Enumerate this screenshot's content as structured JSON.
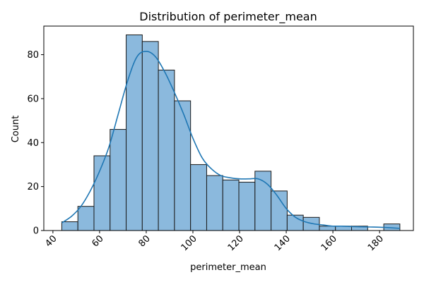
{
  "chart_data": {
    "type": "bar",
    "title": "Distribution of perimeter_mean",
    "xlabel": "perimeter_mean",
    "ylabel": "Count",
    "xlim": [
      36.1,
      194.5
    ],
    "ylim": [
      0,
      93
    ],
    "xticks": [
      40,
      60,
      80,
      100,
      120,
      140,
      160,
      180
    ],
    "yticks": [
      0,
      20,
      40,
      60,
      80
    ],
    "bins": [
      {
        "start": 43.8,
        "end": 50.7,
        "count": 4
      },
      {
        "start": 50.7,
        "end": 57.6,
        "count": 11
      },
      {
        "start": 57.6,
        "end": 64.5,
        "count": 34
      },
      {
        "start": 64.5,
        "end": 71.4,
        "count": 46
      },
      {
        "start": 71.4,
        "end": 78.3,
        "count": 89
      },
      {
        "start": 78.3,
        "end": 85.2,
        "count": 86
      },
      {
        "start": 85.2,
        "end": 92.1,
        "count": 73
      },
      {
        "start": 92.1,
        "end": 99.0,
        "count": 59
      },
      {
        "start": 99.0,
        "end": 105.9,
        "count": 30
      },
      {
        "start": 105.9,
        "end": 112.8,
        "count": 25
      },
      {
        "start": 112.8,
        "end": 119.7,
        "count": 23
      },
      {
        "start": 119.7,
        "end": 126.6,
        "count": 22
      },
      {
        "start": 126.6,
        "end": 133.5,
        "count": 27
      },
      {
        "start": 133.5,
        "end": 140.4,
        "count": 18
      },
      {
        "start": 140.4,
        "end": 147.3,
        "count": 7
      },
      {
        "start": 147.3,
        "end": 154.2,
        "count": 6
      },
      {
        "start": 154.2,
        "end": 161.1,
        "count": 2
      },
      {
        "start": 161.1,
        "end": 168.0,
        "count": 2
      },
      {
        "start": 168.0,
        "end": 174.9,
        "count": 2
      },
      {
        "start": 174.9,
        "end": 181.8,
        "count": 0
      },
      {
        "start": 181.8,
        "end": 188.7,
        "count": 3
      }
    ],
    "kde": {
      "x": [
        43.8,
        48,
        52,
        56,
        60,
        64,
        68,
        72,
        76,
        80,
        84,
        88,
        92,
        96,
        100,
        104,
        108,
        112,
        116,
        120,
        124,
        128,
        132,
        136,
        140,
        144,
        148,
        152,
        156,
        160,
        164,
        168,
        172,
        176,
        180,
        184,
        188.7
      ],
      "y": [
        3.5,
        6.5,
        11,
        18,
        27,
        38,
        53,
        68,
        79,
        81.5,
        79,
        72,
        63,
        53,
        42,
        33,
        28,
        25,
        24,
        23.5,
        23.5,
        23.5,
        21,
        16,
        10,
        6,
        4,
        3,
        2.5,
        2,
        2,
        1.8,
        1.7,
        1.6,
        1.5,
        1.3,
        1.0
      ]
    },
    "colors": {
      "bar_fill": "#8bb9dd",
      "bar_edge": "#1a1a1a",
      "kde_line": "#1f77b4"
    },
    "grid": false,
    "legend": "none"
  }
}
